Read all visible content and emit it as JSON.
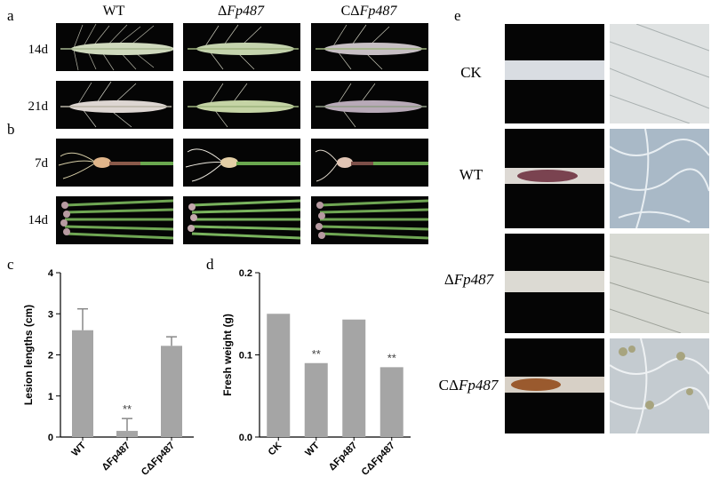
{
  "panels": {
    "a": "a",
    "b": "b",
    "c": "c",
    "d": "d",
    "e": "e"
  },
  "columns": {
    "wt": "WT",
    "mutant_prefix": "Δ",
    "mutant_name": "Fp487",
    "comp_prefix": "CΔ",
    "comp_name": "Fp487"
  },
  "rows": {
    "a1": "14d",
    "a2": "21d",
    "b1": "7d",
    "b2": "14d"
  },
  "e_rows": {
    "ck": "CK",
    "wt": "WT"
  },
  "colors": {
    "bar": "#a5a5a5",
    "photo_bg": "#050505",
    "spike": "#c9d3b8",
    "seedling": "#6aa84f"
  },
  "chart_data": [
    {
      "type": "bar",
      "categories": [
        "WT",
        "ΔFp487",
        "CΔFp487"
      ],
      "values": [
        2.6,
        0.15,
        2.22
      ],
      "errors": [
        0.52,
        0.3,
        0.22
      ],
      "significance": [
        "",
        "**",
        ""
      ],
      "ylabel": "Lesion lengths (cm)",
      "ylim": [
        0,
        4
      ],
      "yticks": [
        "0",
        "1",
        "2",
        "3",
        "4"
      ]
    },
    {
      "type": "bar",
      "categories": [
        "CK",
        "WT",
        "ΔFp487",
        "CΔFp487"
      ],
      "values": [
        0.15,
        0.09,
        0.143,
        0.085
      ],
      "significance": [
        "",
        "**",
        "",
        "**"
      ],
      "ylabel": "Fresh weight (g)",
      "ylim": [
        0,
        0.2
      ],
      "yticks": [
        "0.0",
        "0.1",
        "0.2"
      ]
    }
  ]
}
